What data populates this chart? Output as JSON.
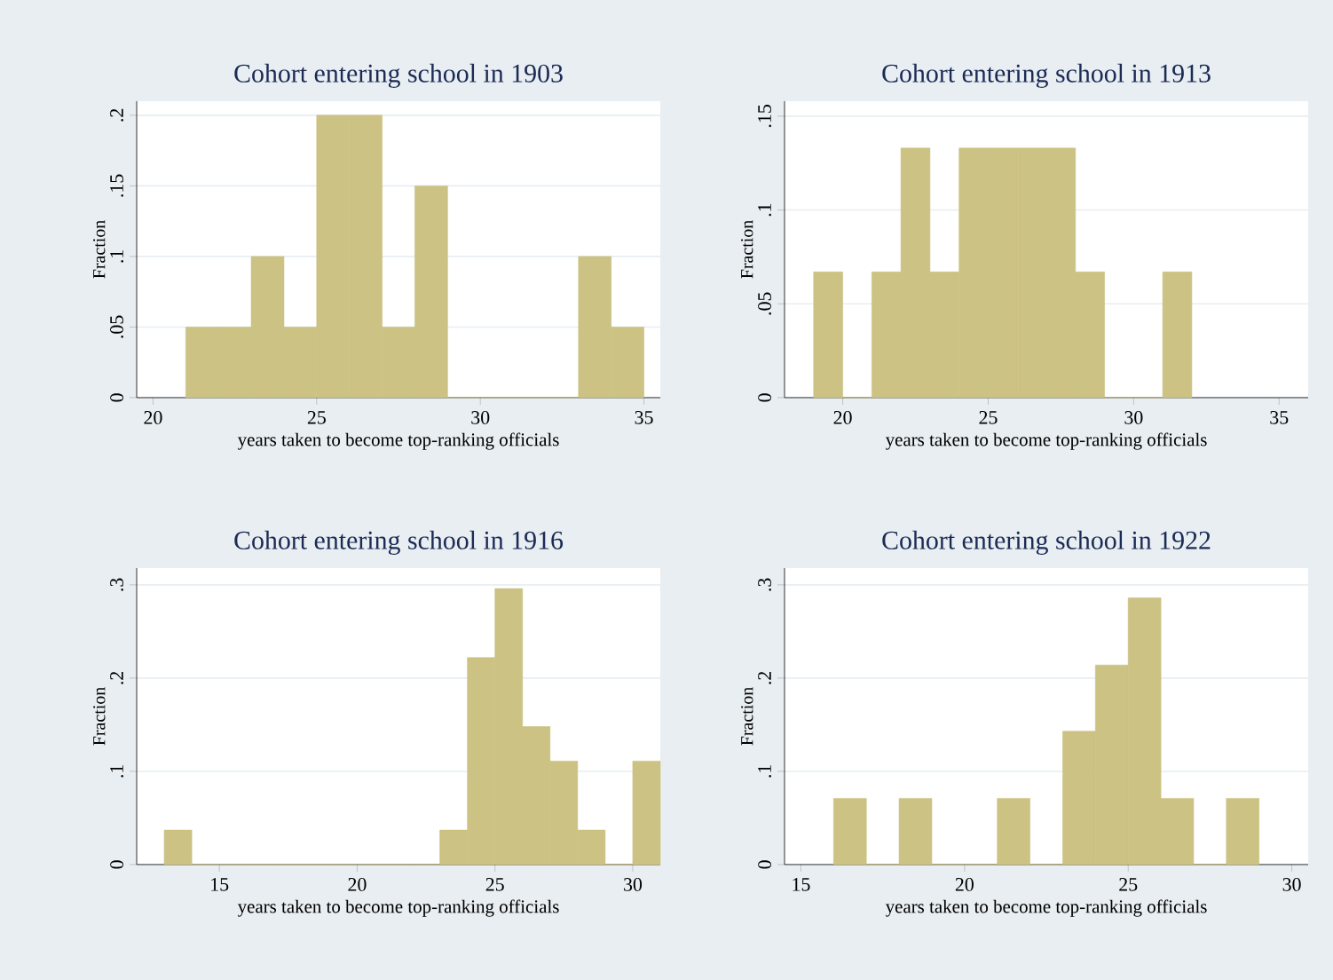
{
  "chart_data": [
    {
      "type": "histogram",
      "title": "Cohort entering school in 1903",
      "xlabel": "years taken to become top-ranking officials",
      "ylabel": "Fraction",
      "color": "#cbc283",
      "grid": "y",
      "bins": [
        21,
        22,
        23,
        24,
        25,
        26,
        27,
        28,
        29,
        30,
        31,
        32,
        33,
        34,
        35
      ],
      "values": [
        0.05,
        0.05,
        0.1,
        0.05,
        0.2,
        0.2,
        0.05,
        0.15,
        0,
        0,
        0,
        0,
        0.1,
        0.05
      ],
      "xlim": [
        19.5,
        35.5
      ],
      "ylim": [
        0,
        0.21
      ],
      "xticks": [
        20,
        25,
        30,
        35
      ],
      "yticks": [
        0,
        {
          "value": 0.05,
          "label": ".05"
        },
        {
          "value": 0.1,
          "label": ".1"
        },
        {
          "value": 0.15,
          "label": ".15"
        },
        {
          "value": 0.2,
          "label": ".2"
        }
      ]
    },
    {
      "type": "histogram",
      "title": "Cohort entering school in 1913",
      "xlabel": "years taken to become top-ranking officials",
      "ylabel": "Fraction",
      "color": "#cbc283",
      "grid": "y",
      "bins": [
        19,
        20,
        21,
        22,
        23,
        24,
        25,
        26,
        27,
        28,
        29,
        30,
        31,
        32
      ],
      "values": [
        0.067,
        0,
        0.067,
        0.133,
        0.067,
        0.133,
        0.133,
        0.133,
        0.133,
        0.067,
        0,
        0,
        0.067
      ],
      "xlim": [
        18,
        36
      ],
      "ylim": [
        0,
        0.158
      ],
      "xticks": [
        20,
        25,
        30,
        35
      ],
      "yticks": [
        0,
        {
          "value": 0.05,
          "label": ".05"
        },
        {
          "value": 0.1,
          "label": ".1"
        },
        {
          "value": 0.15,
          "label": ".15"
        }
      ]
    },
    {
      "type": "histogram",
      "title": "Cohort entering school in 1916",
      "xlabel": "years taken to become top-ranking officials",
      "ylabel": "Fraction",
      "color": "#cbc283",
      "grid": "y",
      "bins": [
        13,
        14,
        15,
        16,
        17,
        18,
        19,
        20,
        21,
        22,
        23,
        24,
        25,
        26,
        27,
        28,
        29,
        30,
        31
      ],
      "values": [
        0.037,
        0,
        0,
        0,
        0,
        0,
        0,
        0,
        0,
        0,
        0.037,
        0.222,
        0.296,
        0.148,
        0.111,
        0.037,
        0,
        0.111
      ],
      "xlim": [
        12,
        31
      ],
      "ylim": [
        0,
        0.318
      ],
      "xticks": [
        15,
        20,
        25,
        30
      ],
      "yticks": [
        0,
        {
          "value": 0.1,
          "label": ".1"
        },
        {
          "value": 0.2,
          "label": ".2"
        },
        {
          "value": 0.3,
          "label": ".3"
        }
      ]
    },
    {
      "type": "histogram",
      "title": "Cohort entering school in 1922",
      "xlabel": "years taken to become top-ranking officials",
      "ylabel": "Fraction",
      "color": "#cbc283",
      "grid": "y",
      "bins": [
        16,
        17,
        18,
        19,
        20,
        21,
        22,
        23,
        24,
        25,
        26,
        27,
        28,
        29
      ],
      "values": [
        0.071,
        0,
        0.071,
        0,
        0,
        0.071,
        0,
        0.143,
        0.214,
        0.286,
        0.071,
        0,
        0.071
      ],
      "xlim": [
        14.5,
        30.5
      ],
      "ylim": [
        0,
        0.318
      ],
      "xticks": [
        15,
        20,
        25,
        30
      ],
      "yticks": [
        0,
        {
          "value": 0.1,
          "label": ".1"
        },
        {
          "value": 0.2,
          "label": ".2"
        },
        {
          "value": 0.3,
          "label": ".3"
        }
      ]
    }
  ]
}
